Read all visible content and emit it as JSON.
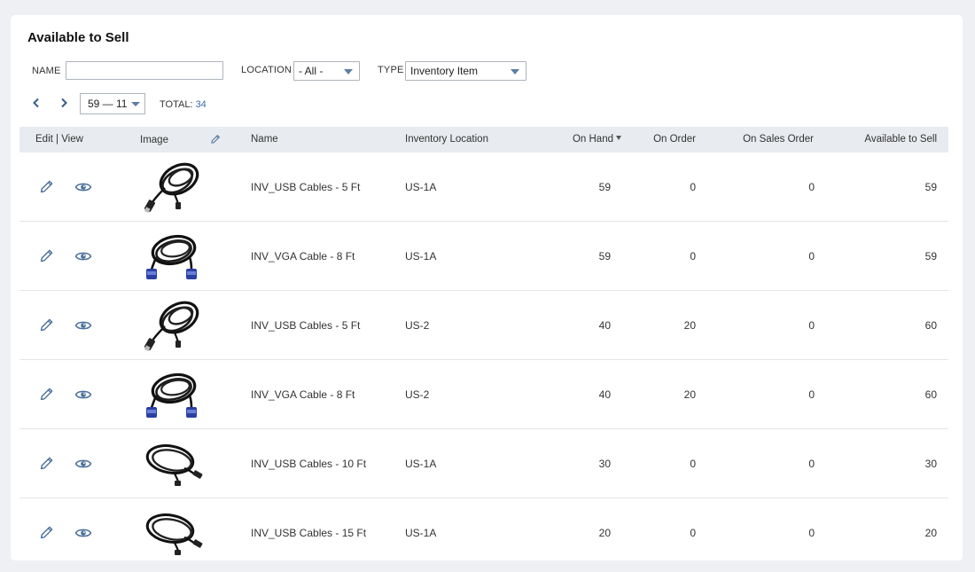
{
  "page": {
    "title": "Available to Sell"
  },
  "filters": {
    "name_label": "NAME",
    "name_value": "",
    "location_label": "LOCATION",
    "location_value": "- All -",
    "type_label": "TYPE",
    "type_value": "Inventory Item"
  },
  "pagination": {
    "range": "59 — 11",
    "total_label": "TOTAL:",
    "total_value": "34"
  },
  "table": {
    "headers": {
      "edit_view": "Edit | View",
      "image": "Image",
      "name": "Name",
      "location": "Inventory Location",
      "on_hand": "On Hand",
      "on_order": "On Order",
      "on_sales_order": "On Sales Order",
      "available": "Available to Sell"
    },
    "sort_column": "On Hand",
    "rows": [
      {
        "image": "usb-cable-coiled",
        "name": "INV_USB Cables - 5 Ft",
        "location": "US-1A",
        "on_hand": "59",
        "on_order": "0",
        "on_sales_order": "0",
        "available": "59"
      },
      {
        "image": "vga-cable",
        "name": "INV_VGA Cable - 8 Ft",
        "location": "US-1A",
        "on_hand": "59",
        "on_order": "0",
        "on_sales_order": "0",
        "available": "59"
      },
      {
        "image": "usb-cable-coiled",
        "name": "INV_USB Cables - 5 Ft",
        "location": "US-2",
        "on_hand": "40",
        "on_order": "20",
        "on_sales_order": "0",
        "available": "60"
      },
      {
        "image": "vga-cable",
        "name": "INV_VGA Cable - 8 Ft",
        "location": "US-2",
        "on_hand": "40",
        "on_order": "20",
        "on_sales_order": "0",
        "available": "60"
      },
      {
        "image": "usb-cable-loop",
        "name": "INV_USB Cables - 10 Ft",
        "location": "US-1A",
        "on_hand": "30",
        "on_order": "0",
        "on_sales_order": "0",
        "available": "30"
      },
      {
        "image": "usb-cable-loop",
        "name": "INV_USB Cables - 15 Ft",
        "location": "US-1A",
        "on_hand": "20",
        "on_order": "0",
        "on_sales_order": "0",
        "available": "20"
      }
    ]
  },
  "colors": {
    "accent": "#5a7fa8",
    "link": "#3b6db0",
    "header_bg": "#e8ebef",
    "page_bg": "#eef0f3"
  }
}
